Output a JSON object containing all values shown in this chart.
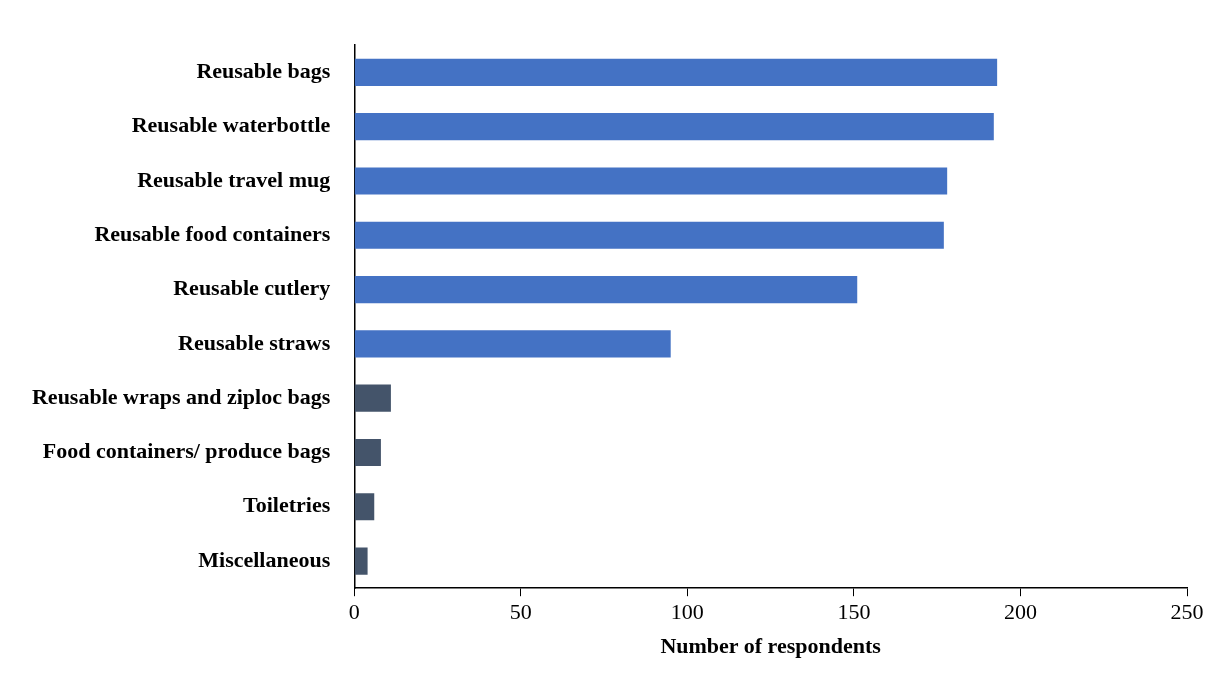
{
  "chart_data": {
    "type": "bar",
    "orientation": "horizontal",
    "xlabel": "Number of respondents",
    "categories": [
      "Reusable bags",
      "Reusable waterbottle",
      "Reusable travel mug",
      "Reusable food containers",
      "Reusable cutlery",
      "Reusable straws",
      "Reusable wraps and ziploc bags",
      "Food containers/ produce bags",
      "Toiletries",
      "Miscellaneous"
    ],
    "values": [
      193,
      192,
      178,
      177,
      151,
      95,
      11,
      8,
      6,
      4
    ],
    "colors": [
      "#4472c4",
      "#4472c4",
      "#4472c4",
      "#4472c4",
      "#4472c4",
      "#4472c4",
      "#44546a",
      "#44546a",
      "#44546a",
      "#44546a"
    ],
    "xlim": [
      0,
      250
    ],
    "xticks": [
      0,
      50,
      100,
      150,
      200,
      250
    ],
    "grid": false,
    "legend": false
  }
}
